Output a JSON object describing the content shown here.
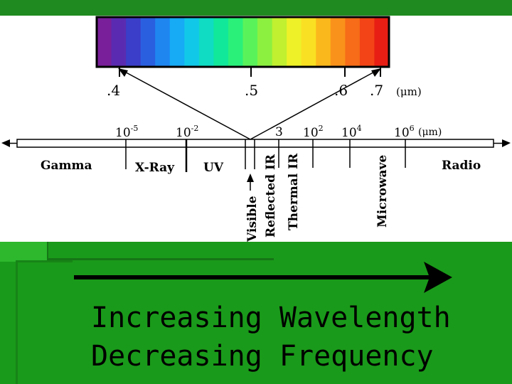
{
  "spectrum": {
    "colors": [
      "#7a1f9a",
      "#5a2bb0",
      "#3b3ec8",
      "#2a5fe0",
      "#1f86f0",
      "#17aaf5",
      "#12c8e8",
      "#10dcc4",
      "#12e89a",
      "#2af07a",
      "#5af25a",
      "#8cf040",
      "#c0f030",
      "#eef028",
      "#fae022",
      "#fbb81c",
      "#f9921a",
      "#f66c18",
      "#f24416",
      "#e81e14"
    ],
    "scale_labels": [
      ".4",
      ".5",
      ".6",
      ".7"
    ],
    "unit": "(μm)"
  },
  "axis": {
    "tick_labels": [
      {
        "base": "10",
        "exp": "-5"
      },
      {
        "base": "10",
        "exp": "-2"
      },
      {
        "base": "3",
        "exp": ""
      },
      {
        "base": "10",
        "exp": "2"
      },
      {
        "base": "10",
        "exp": "4"
      },
      {
        "base": "10",
        "exp": "6"
      }
    ],
    "unit": "(μm)"
  },
  "regions": {
    "gamma": "Gamma",
    "xray": "X-Ray",
    "uv": "UV",
    "visible": "Visible",
    "reflected_ir": "Reflected IR",
    "thermal_ir": "Thermal IR",
    "microwave": "Microwave",
    "radio": "Radio"
  },
  "caption": {
    "line1": "Increasing Wavelength",
    "line2": "Decreasing Frequency"
  },
  "colors": {
    "background": "#1a9a1a",
    "top_bar": "#1f8a1f"
  }
}
